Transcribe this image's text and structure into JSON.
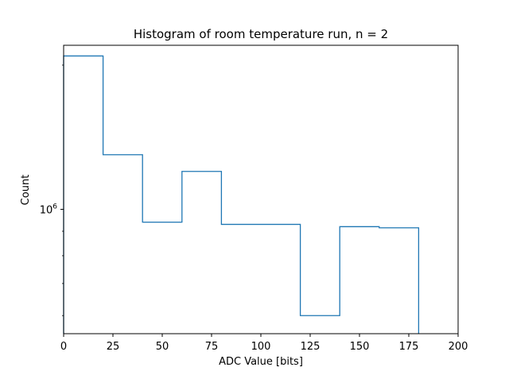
{
  "chart_data": {
    "type": "histogram",
    "title": "Histogram of room temperature run, n = 2",
    "xlabel": "ADC Value [bits]",
    "ylabel": "Count",
    "xlim": [
      0,
      200
    ],
    "ylim": [
      550000,
      2200000
    ],
    "yscale": "log",
    "grid": false,
    "xticks": [
      0,
      25,
      50,
      75,
      100,
      125,
      150,
      175,
      200
    ],
    "xtick_labels": [
      "0",
      "25",
      "50",
      "75",
      "100",
      "125",
      "150",
      "175",
      "200"
    ],
    "yticks": [
      1000000
    ],
    "ytick_labels": [
      {
        "base": "10",
        "exponent": "6"
      }
    ],
    "bins": [
      0,
      20,
      40,
      60,
      80,
      100,
      120,
      140,
      160,
      180
    ],
    "counts": [
      2090000,
      1300000,
      940000,
      1200000,
      930000,
      930000,
      600000,
      920000,
      915000
    ],
    "histtype": "step",
    "color": "#1f77b4"
  }
}
